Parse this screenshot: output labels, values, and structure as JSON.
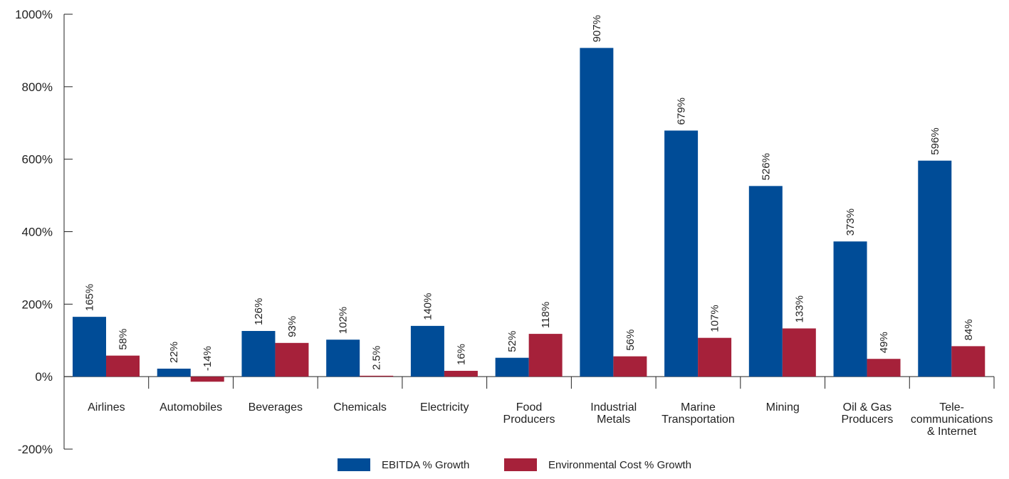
{
  "chart_data": {
    "type": "bar",
    "title": "",
    "xlabel": "",
    "ylabel": "",
    "ylim": [
      -200,
      1000
    ],
    "yticks": [
      -200,
      0,
      200,
      400,
      600,
      800,
      1000
    ],
    "ytick_labels": [
      "-200%",
      "0%",
      "200%",
      "400%",
      "600%",
      "800%",
      "1000%"
    ],
    "grid": false,
    "legend_position": "bottom-center",
    "categories": [
      [
        "Airlines"
      ],
      [
        "Automobiles"
      ],
      [
        "Beverages"
      ],
      [
        "Chemicals"
      ],
      [
        "Electricity"
      ],
      [
        "Food",
        "Producers"
      ],
      [
        "Industrial",
        "Metals"
      ],
      [
        "Marine",
        "Transportation"
      ],
      [
        "Mining"
      ],
      [
        "Oil & Gas",
        "Producers"
      ],
      [
        "Tele-",
        "communications",
        "& Internet"
      ]
    ],
    "series": [
      {
        "name": "EBITDA % Growth",
        "color": "#004c97",
        "values": [
          165,
          22,
          126,
          102,
          140,
          52,
          907,
          679,
          526,
          373,
          596
        ],
        "labels": [
          "165%",
          "22%",
          "126%",
          "102%",
          "140%",
          "52%",
          "907%",
          "679%",
          "526%",
          "373%",
          "596%"
        ]
      },
      {
        "name": "Environmental Cost % Growth",
        "color": "#a6213a",
        "values": [
          58,
          -14,
          93,
          2.5,
          16,
          118,
          56,
          107,
          133,
          49,
          84
        ],
        "labels": [
          "58%",
          "-14%",
          "93%",
          "2.5%",
          "16%",
          "118%",
          "56%",
          "107%",
          "133%",
          "49%",
          "84%"
        ]
      }
    ]
  }
}
